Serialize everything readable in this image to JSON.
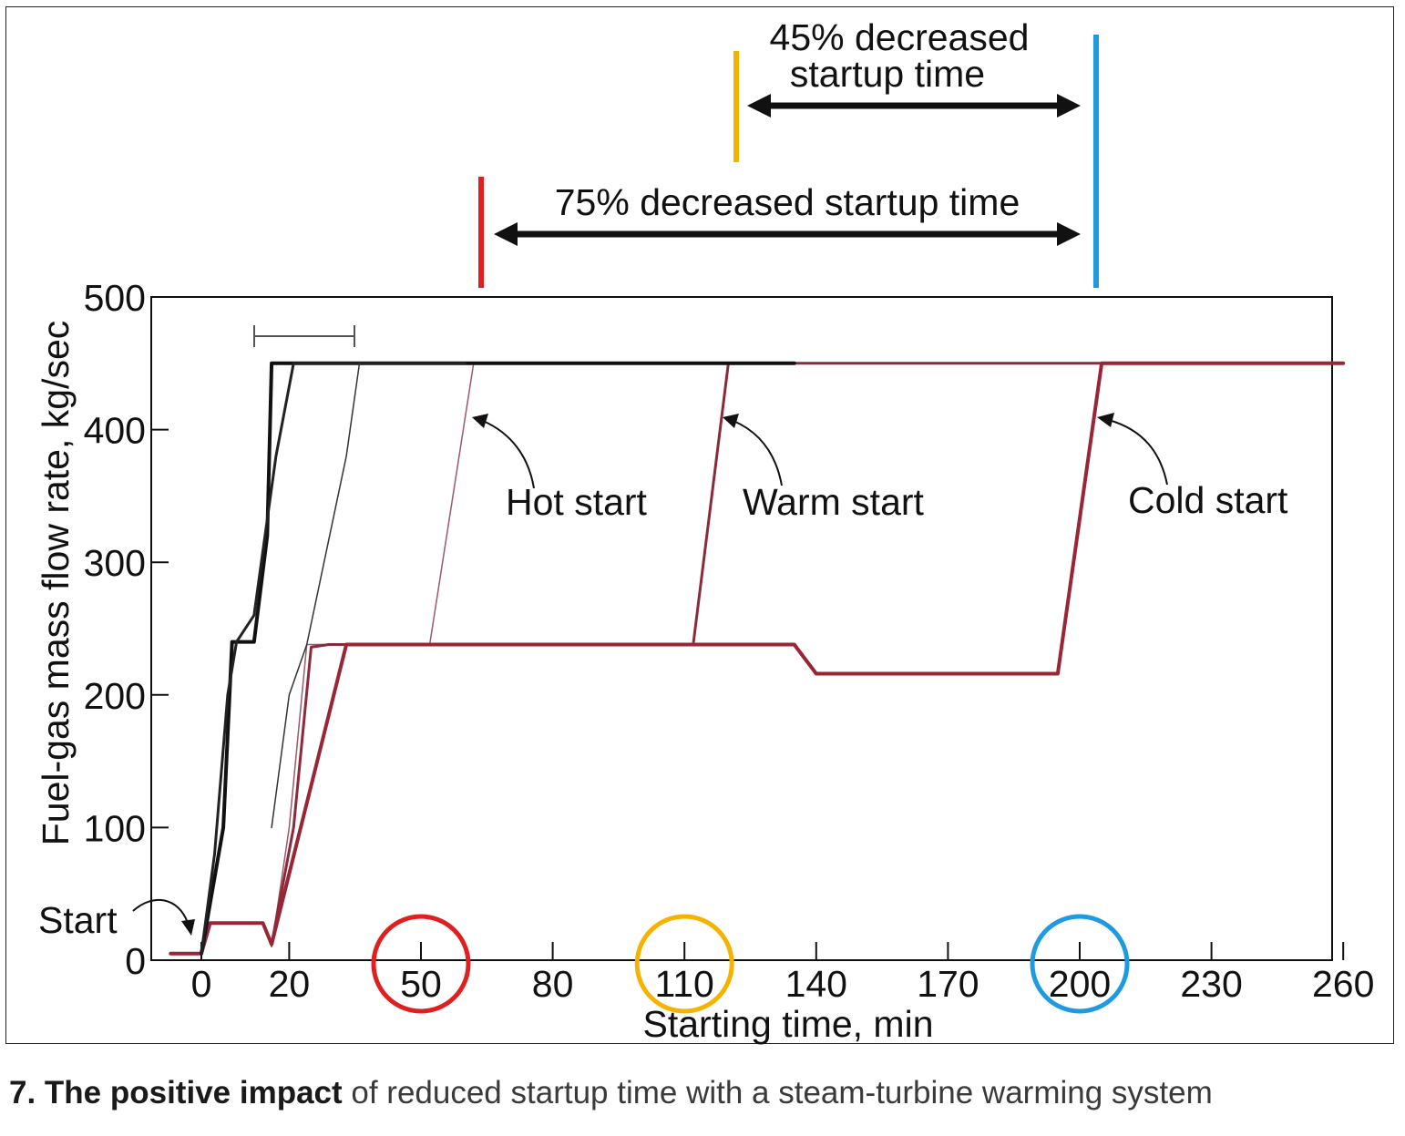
{
  "chart_data": {
    "type": "line",
    "xlabel": "Starting time, min",
    "ylabel": "Fuel-gas mass flow rate, kg/sec",
    "xlim": [
      -7,
      260
    ],
    "ylim": [
      0,
      500
    ],
    "xticks": [
      0,
      20,
      50,
      80,
      110,
      140,
      170,
      200,
      230,
      260
    ],
    "yticks": [
      0,
      100,
      200,
      300,
      400,
      500
    ],
    "highlighted_ticks": [
      {
        "value": 50,
        "color": "#e02020"
      },
      {
        "value": 110,
        "color": "#f5b300"
      },
      {
        "value": 200,
        "color": "#1e9be0"
      }
    ],
    "series": [
      {
        "name": "Hot start",
        "color": "#9a5a6a",
        "width": 1.5,
        "x": [
          -7,
          0,
          2,
          14,
          16,
          20,
          24,
          28,
          52,
          62,
          260
        ],
        "y": [
          5,
          5,
          28,
          28,
          10,
          100,
          238,
          238,
          238,
          450,
          450
        ]
      },
      {
        "name": "Warm start",
        "color": "#8b2a3a",
        "width": 3,
        "x": [
          -7,
          0,
          2,
          14,
          16,
          21,
          25,
          29,
          112,
          120,
          260
        ],
        "y": [
          5,
          5,
          28,
          28,
          12,
          100,
          236,
          238,
          238,
          450,
          450
        ]
      },
      {
        "name": "Cold start",
        "color": "#9a2535",
        "width": 4,
        "x": [
          -7,
          0,
          2,
          14,
          16,
          33,
          135,
          140,
          195,
          205,
          260
        ],
        "y": [
          5,
          5,
          28,
          28,
          12,
          238,
          238,
          216,
          216,
          450,
          450
        ]
      },
      {
        "name": "",
        "color": "#111111",
        "width": 4,
        "x": [
          0,
          5,
          7,
          10,
          12,
          15,
          16,
          135
        ],
        "y": [
          5,
          100,
          240,
          240,
          240,
          320,
          450,
          450
        ]
      },
      {
        "name": "",
        "color": "#222222",
        "width": 3,
        "x": [
          0,
          3,
          6,
          8,
          12,
          17,
          21,
          60
        ],
        "y": [
          5,
          80,
          200,
          240,
          260,
          380,
          450,
          450
        ]
      },
      {
        "name": "",
        "color": "#333333",
        "width": 1.5,
        "x": [
          16,
          20,
          24,
          33,
          36
        ],
        "y": [
          100,
          200,
          238,
          380,
          450
        ]
      }
    ],
    "annotations": [
      {
        "text": "Hot start"
      },
      {
        "text": "Warm start"
      },
      {
        "text": "Cold start"
      },
      {
        "text": "Start"
      },
      {
        "text": "75% decreased startup time",
        "from": 50,
        "to": 200
      },
      {
        "text": "45% decreased",
        "text2": "startup time",
        "from": 110,
        "to": 200
      }
    ]
  },
  "marker_colors": {
    "red": "#e02020",
    "orange": "#f5b300",
    "blue": "#1e9be0"
  },
  "caption": {
    "bold": "7. The positive impact",
    "rest": " of reduced startup time with a steam-turbine warming system"
  }
}
